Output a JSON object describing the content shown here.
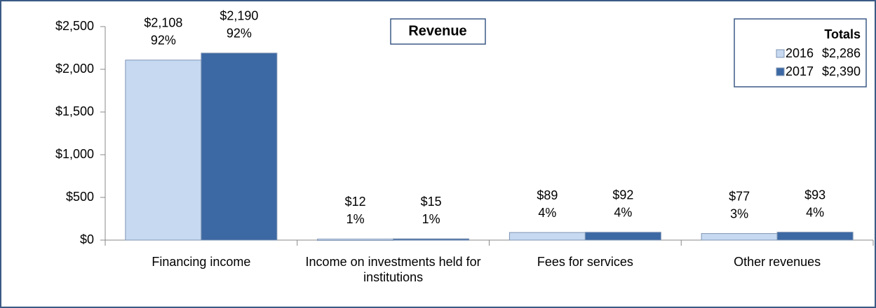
{
  "chart_data": {
    "type": "bar",
    "title": "Revenue",
    "categories": [
      "Financing income",
      "Income on investments held for institutions",
      "Fees for services",
      "Other revenues"
    ],
    "series": [
      {
        "name": "2016",
        "color": "#c6d9f1",
        "values": [
          2108,
          12,
          89,
          77
        ],
        "value_labels": [
          "$2,108",
          "$12",
          "$89",
          "$77"
        ],
        "share_labels": [
          "92%",
          "1%",
          "4%",
          "3%"
        ],
        "total_label": "$2,286"
      },
      {
        "name": "2017",
        "color": "#3c68a4",
        "values": [
          2190,
          15,
          92,
          93
        ],
        "value_labels": [
          "$2,190",
          "$15",
          "$92",
          "$93"
        ],
        "share_labels": [
          "92%",
          "1%",
          "4%",
          "4%"
        ],
        "total_label": "$2,390"
      }
    ],
    "legend_title": "Totals",
    "ylim": [
      0,
      2500
    ],
    "yticks": [
      {
        "value": 0,
        "label": "$0"
      },
      {
        "value": 500,
        "label": "$500"
      },
      {
        "value": 1000,
        "label": "$1,000"
      },
      {
        "value": 1500,
        "label": "$1,500"
      },
      {
        "value": 2000,
        "label": "$2,000"
      },
      {
        "value": 2500,
        "label": "$2,500"
      }
    ],
    "legend": "top-right"
  }
}
